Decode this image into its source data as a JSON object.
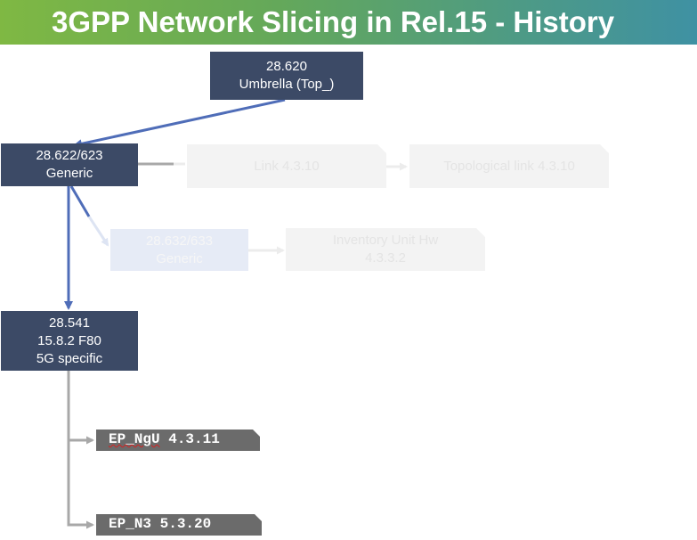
{
  "title": "3GPP Network Slicing in Rel.15 - History",
  "colors": {
    "dark_box": "#3c4a66",
    "arrow_blue": "#4f6db8",
    "connector_gray": "#a8a8a8",
    "code_box": "#6b6b6b"
  },
  "nodes": {
    "umbrella": {
      "line1": "28.620",
      "line2": "Umbrella (Top_)"
    },
    "generic_622": {
      "line1": "28.622/623",
      "line2": "Generic"
    },
    "link": {
      "label": "Link 4.3.10"
    },
    "topo_link": {
      "label": "Topological link 4.3.10"
    },
    "generic_632": {
      "line1": "28.632/633",
      "line2": "Generic"
    },
    "inventory": {
      "line1": "Inventory Unit Hw",
      "line2": "4.3.3.2"
    },
    "spec_541": {
      "line1": "28.541",
      "line2": "15.8.2 F80",
      "line3": "5G specific"
    },
    "ep_ngu": {
      "name": "EP_NgU",
      "ref": " 4.3.11"
    },
    "ep_n3": {
      "name": "EP_N3",
      "ref": " 5.3.20"
    }
  }
}
